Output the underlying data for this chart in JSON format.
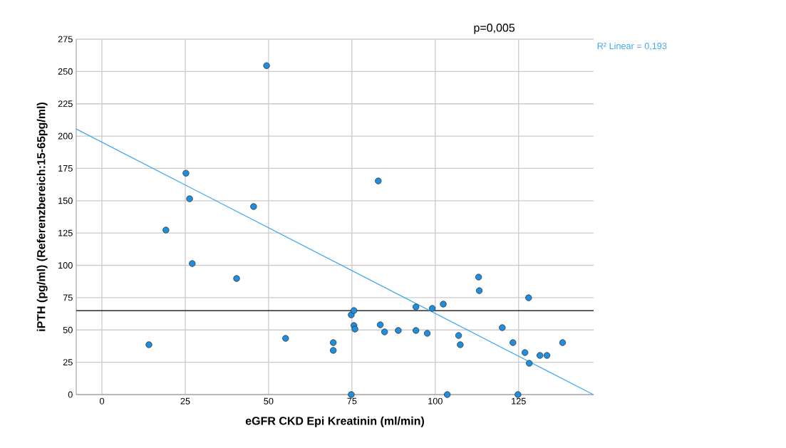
{
  "chart_data": {
    "type": "scatter",
    "title": "p=0,005",
    "xlabel": "eGFR CKD Epi Kreatinin (ml/min)",
    "ylabel": "iPTH (pg/ml) (Referenzbereich:15-65pg/ml)",
    "xlim": [
      -7.7,
      147.5
    ],
    "ylim": [
      0,
      275
    ],
    "xticks": [
      0,
      25,
      50,
      75,
      100,
      125
    ],
    "yticks": [
      0,
      25,
      50,
      75,
      100,
      125,
      150,
      175,
      200,
      225,
      250,
      275
    ],
    "grid": true,
    "marker": "circle",
    "ref_lines": [
      {
        "axis": "y",
        "value": 65,
        "color": "#000000"
      }
    ],
    "series": [
      {
        "color": "#1e8fe0",
        "x": [
          14.1,
          19.2,
          25.2,
          26.3,
          27.1,
          40.4,
          45.5,
          49.4,
          55.1,
          69.4,
          69.4,
          74.8,
          74.8,
          75.6,
          75.6,
          75.9,
          82.9,
          83.5,
          84.8,
          88.9,
          94.2,
          94.2,
          97.6,
          99.1,
          102.4,
          103.6,
          107,
          107.5,
          113,
          113.2,
          120.1,
          123.3,
          124.8,
          126.9,
          128,
          128.2,
          131.4,
          133.5,
          138.2
        ],
        "values": [
          38.6,
          127.3,
          171.3,
          151.5,
          101.4,
          89.8,
          145.5,
          254.5,
          43.5,
          40.2,
          34.2,
          0,
          61.7,
          65,
          53.4,
          50.7,
          165.3,
          54,
          48.5,
          49.6,
          67.8,
          49.6,
          47.4,
          66.7,
          70,
          0,
          45.7,
          38.6,
          90.9,
          80.4,
          51.8,
          40.2,
          0,
          32.5,
          74.9,
          24.2,
          30.3,
          30.3,
          40.2
        ]
      },
      {
        "type": "line",
        "name": "R² Linear = 0,193",
        "color": "#3ea8f0",
        "marker": "none",
        "line_style": "solid",
        "x": [
          -7.7,
          147.4
        ],
        "values": [
          205.5,
          0
        ]
      }
    ]
  }
}
